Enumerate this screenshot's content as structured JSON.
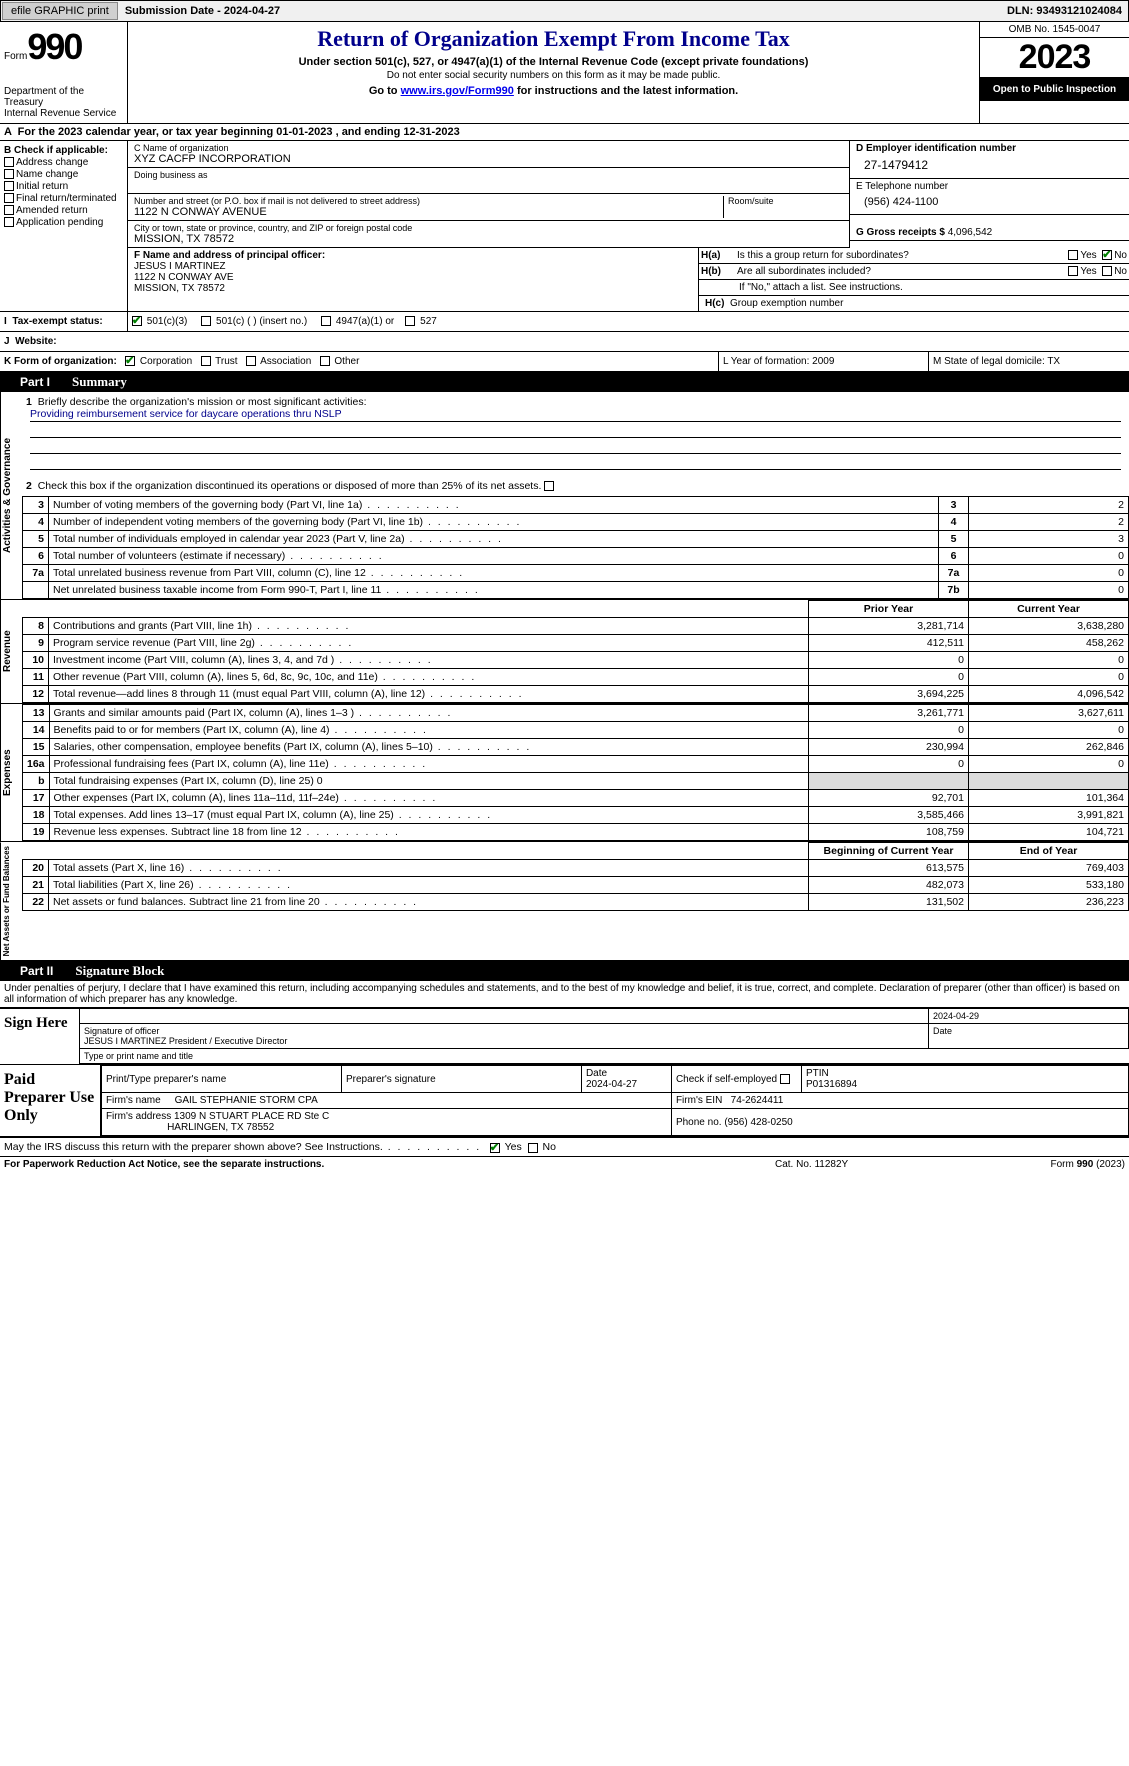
{
  "topbar": {
    "efile": "efile GRAPHIC print",
    "submission": "Submission Date - 2024-04-27",
    "dln": "DLN: 93493121024084"
  },
  "header": {
    "form_prefix": "Form",
    "form_no": "990",
    "dept": "Department of the Treasury\nInternal Revenue Service",
    "title": "Return of Organization Exempt From Income Tax",
    "subtitle": "Under section 501(c), 527, or 4947(a)(1) of the Internal Revenue Code (except private foundations)",
    "note": "Do not enter social security numbers on this form as it may be made public.",
    "goto_pre": "Go to ",
    "goto_link": "www.irs.gov/Form990",
    "goto_post": " for instructions and the latest information.",
    "omb": "OMB No. 1545-0047",
    "year": "2023",
    "public": "Open to Public Inspection"
  },
  "period": "For the 2023 calendar year, or tax year beginning 01-01-2023    , and ending 12-31-2023",
  "sectionB": {
    "header": "B Check if applicable:",
    "opts": [
      "Address change",
      "Name change",
      "Initial return",
      "Final return/terminated",
      "Amended return",
      "Application pending"
    ]
  },
  "sectionC": {
    "name_label": "C Name of organization",
    "name": "XYZ CACFP INCORPORATION",
    "dba_label": "Doing business as",
    "street_label": "Number and street (or P.O. box if mail is not delivered to street address)",
    "room_label": "Room/suite",
    "street": "1122 N CONWAY AVENUE",
    "city_label": "City or town, state or province, country, and ZIP or foreign postal code",
    "city": "MISSION, TX  78572"
  },
  "sectionDE": {
    "d_label": "D Employer identification number",
    "d_val": "27-1479412",
    "e_label": "E Telephone number",
    "e_val": "(956) 424-1100",
    "g_label": "G Gross receipts $ ",
    "g_val": "4,096,542"
  },
  "sectionF": {
    "label": "F Name and address of principal officer:",
    "name": "JESUS I MARTINEZ",
    "addr1": "1122 N CONWAY AVE",
    "addr2": "MISSION, TX  78572"
  },
  "sectionH": {
    "a": "Is this a group return for subordinates?",
    "b": "Are all subordinates included?",
    "b_note": "If \"No,\" attach a list. See instructions.",
    "c": "Group exemption number",
    "yes": "Yes",
    "no": "No"
  },
  "sectionI": {
    "label": "Tax-exempt status:",
    "o1": "501(c)(3)",
    "o2": "501(c) (  ) (insert no.)",
    "o3": "4947(a)(1) or",
    "o4": "527"
  },
  "sectionJ": {
    "label": "Website:"
  },
  "sectionK": {
    "label": "K Form of organization:",
    "o1": "Corporation",
    "o2": "Trust",
    "o3": "Association",
    "o4": "Other"
  },
  "sectionLM": {
    "l": "L Year of formation: 2009",
    "m": "M State of legal domicile: TX"
  },
  "part1": {
    "label": "Part I",
    "title": "Summary"
  },
  "governance": {
    "sidebar": "Activities & Governance",
    "line1_label": "Briefly describe the organization's mission or most significant activities:",
    "line1_val": "Providing reimbursement service for daycare operations thru NSLP",
    "line2": "Check this box        if the organization discontinued its operations or disposed of more than 25% of its net assets.",
    "rows": [
      {
        "n": "3",
        "d": "Number of voting members of the governing body (Part VI, line 1a)",
        "b": "3",
        "v": "2"
      },
      {
        "n": "4",
        "d": "Number of independent voting members of the governing body (Part VI, line 1b)",
        "b": "4",
        "v": "2"
      },
      {
        "n": "5",
        "d": "Total number of individuals employed in calendar year 2023 (Part V, line 2a)",
        "b": "5",
        "v": "3"
      },
      {
        "n": "6",
        "d": "Total number of volunteers (estimate if necessary)",
        "b": "6",
        "v": "0"
      },
      {
        "n": "7a",
        "d": "Total unrelated business revenue from Part VIII, column (C), line 12",
        "b": "7a",
        "v": "0"
      },
      {
        "n": "",
        "d": "Net unrelated business taxable income from Form 990-T, Part I, line 11",
        "b": "7b",
        "v": "0"
      }
    ]
  },
  "revenue": {
    "sidebar": "Revenue",
    "prior": "Prior Year",
    "current": "Current Year",
    "rows": [
      {
        "n": "8",
        "d": "Contributions and grants (Part VIII, line 1h)",
        "p": "3,281,714",
        "c": "3,638,280"
      },
      {
        "n": "9",
        "d": "Program service revenue (Part VIII, line 2g)",
        "p": "412,511",
        "c": "458,262"
      },
      {
        "n": "10",
        "d": "Investment income (Part VIII, column (A), lines 3, 4, and 7d )",
        "p": "0",
        "c": "0"
      },
      {
        "n": "11",
        "d": "Other revenue (Part VIII, column (A), lines 5, 6d, 8c, 9c, 10c, and 11e)",
        "p": "0",
        "c": "0"
      },
      {
        "n": "12",
        "d": "Total revenue—add lines 8 through 11 (must equal Part VIII, column (A), line 12)",
        "p": "3,694,225",
        "c": "4,096,542"
      }
    ]
  },
  "expenses": {
    "sidebar": "Expenses",
    "rows": [
      {
        "n": "13",
        "d": "Grants and similar amounts paid (Part IX, column (A), lines 1–3 )",
        "p": "3,261,771",
        "c": "3,627,611"
      },
      {
        "n": "14",
        "d": "Benefits paid to or for members (Part IX, column (A), line 4)",
        "p": "0",
        "c": "0"
      },
      {
        "n": "15",
        "d": "Salaries, other compensation, employee benefits (Part IX, column (A), lines 5–10)",
        "p": "230,994",
        "c": "262,846"
      },
      {
        "n": "16a",
        "d": "Professional fundraising fees (Part IX, column (A), line 11e)",
        "p": "0",
        "c": "0"
      },
      {
        "n": "b",
        "d": "Total fundraising expenses (Part IX, column (D), line 25) 0",
        "p": "",
        "c": "",
        "grey": true
      },
      {
        "n": "17",
        "d": "Other expenses (Part IX, column (A), lines 11a–11d, 11f–24e)",
        "p": "92,701",
        "c": "101,364"
      },
      {
        "n": "18",
        "d": "Total expenses. Add lines 13–17 (must equal Part IX, column (A), line 25)",
        "p": "3,585,466",
        "c": "3,991,821"
      },
      {
        "n": "19",
        "d": "Revenue less expenses. Subtract line 18 from line 12",
        "p": "108,759",
        "c": "104,721"
      }
    ]
  },
  "netassets": {
    "sidebar": "Net Assets or Fund Balances",
    "begin": "Beginning of Current Year",
    "end": "End of Year",
    "rows": [
      {
        "n": "20",
        "d": "Total assets (Part X, line 16)",
        "p": "613,575",
        "c": "769,403"
      },
      {
        "n": "21",
        "d": "Total liabilities (Part X, line 26)",
        "p": "482,073",
        "c": "533,180"
      },
      {
        "n": "22",
        "d": "Net assets or fund balances. Subtract line 21 from line 20",
        "p": "131,502",
        "c": "236,223"
      }
    ]
  },
  "part2": {
    "label": "Part II",
    "title": "Signature Block"
  },
  "penalty": "Under penalties of perjury, I declare that I have examined this return, including accompanying schedules and statements, and to the best of my knowledge and belief, it is true, correct, and complete. Declaration of preparer (other than officer) is based on all information of which preparer has any knowledge.",
  "sign": {
    "here": "Sign Here",
    "date": "2024-04-29",
    "sig_label": "Signature of officer",
    "date_label": "Date",
    "officer": "JESUS I MARTINEZ  President / Executive Director",
    "type_label": "Type or print name and title"
  },
  "paid": {
    "label": "Paid Preparer Use Only",
    "h1": "Print/Type preparer's name",
    "h2": "Preparer's signature",
    "h3": "Date",
    "h3v": "2024-04-27",
    "h4a": "Check         if self-employed",
    "h5": "PTIN",
    "h5v": "P01316894",
    "firm_name_l": "Firm's name",
    "firm_name": "GAIL STEPHANIE STORM CPA",
    "firm_ein_l": "Firm's EIN",
    "firm_ein": "74-2624411",
    "firm_addr_l": "Firm's address",
    "firm_addr1": "1309 N STUART PLACE RD Ste C",
    "firm_addr2": "HARLINGEN, TX  78552",
    "phone_l": "Phone no.",
    "phone": "(956) 428-0250"
  },
  "discuss": "May the IRS discuss this return with the preparer shown above? See Instructions.",
  "footer": {
    "left": "For Paperwork Reduction Act Notice, see the separate instructions.",
    "mid": "Cat. No. 11282Y",
    "right_pre": "Form ",
    "right_bold": "990",
    "right_post": " (2023)"
  },
  "ui_colors": {
    "title": "#00008b",
    "check": "#008000",
    "link": "#0000ee",
    "grey": "#dcdcdc",
    "black": "#000000"
  }
}
